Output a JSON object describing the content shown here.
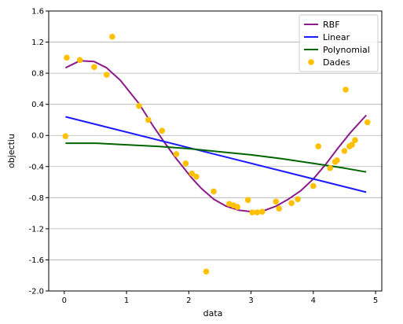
{
  "chart_data": {
    "type": "line",
    "title": "",
    "xlabel": "data",
    "ylabel": "objectiu",
    "xlim": [
      -0.25,
      5.1
    ],
    "ylim": [
      -2.0,
      1.6
    ],
    "xticks": [
      0,
      1,
      2,
      3,
      4,
      5
    ],
    "xtick_labels": [
      "0",
      "1",
      "2",
      "3",
      "4",
      "5"
    ],
    "yticks": [
      -2.0,
      -1.6,
      -1.2,
      -0.8,
      -0.4,
      0.0,
      0.4,
      0.8,
      1.2,
      1.6
    ],
    "ytick_labels": [
      "-2.0",
      "-1.6",
      "-1.2",
      "-0.8",
      "-0.4",
      "0.0",
      "0.4",
      "0.8",
      "1.2",
      "1.6"
    ],
    "grid": "horizontal",
    "legend_position": "top-right",
    "series": [
      {
        "name": "RBF",
        "kind": "line",
        "color": "#8b1a8b",
        "x": [
          0.02,
          0.25,
          0.48,
          0.68,
          0.9,
          1.2,
          1.42,
          1.6,
          1.8,
          2.05,
          2.2,
          2.4,
          2.6,
          2.8,
          3.0,
          3.2,
          3.4,
          3.6,
          3.8,
          4.0,
          4.2,
          4.4,
          4.6,
          4.85
        ],
        "y": [
          0.87,
          0.96,
          0.95,
          0.87,
          0.71,
          0.41,
          0.13,
          -0.08,
          -0.3,
          -0.55,
          -0.68,
          -0.82,
          -0.91,
          -0.96,
          -0.98,
          -0.97,
          -0.91,
          -0.82,
          -0.71,
          -0.56,
          -0.37,
          -0.16,
          0.04,
          0.26
        ]
      },
      {
        "name": "Linear",
        "kind": "line",
        "color": "#1a1aff",
        "x": [
          0.02,
          4.85
        ],
        "y": [
          0.24,
          -0.73
        ]
      },
      {
        "name": "Polynomial",
        "kind": "line",
        "color": "#006400",
        "x": [
          0.02,
          0.5,
          1.0,
          1.5,
          2.0,
          2.5,
          3.0,
          3.5,
          4.0,
          4.5,
          4.85
        ],
        "y": [
          -0.1,
          -0.1,
          -0.12,
          -0.14,
          -0.17,
          -0.21,
          -0.25,
          -0.3,
          -0.36,
          -0.42,
          -0.47
        ]
      },
      {
        "name": "Dades",
        "kind": "scatter",
        "color": "#ffc000",
        "x": [
          0.02,
          0.04,
          0.25,
          0.48,
          0.68,
          0.77,
          1.2,
          1.35,
          1.57,
          1.8,
          1.95,
          2.05,
          2.12,
          2.28,
          2.4,
          2.65,
          2.72,
          2.78,
          2.95,
          3.02,
          3.1,
          3.18,
          3.4,
          3.45,
          3.65,
          3.75,
          4.0,
          4.08,
          4.27,
          4.35,
          4.38,
          4.5,
          4.52,
          4.58,
          4.62,
          4.67,
          4.87
        ],
        "y": [
          -0.01,
          1.0,
          0.97,
          0.88,
          0.78,
          1.27,
          0.38,
          0.2,
          0.06,
          -0.24,
          -0.36,
          -0.49,
          -0.53,
          -1.75,
          -0.72,
          -0.88,
          -0.9,
          -0.92,
          -0.83,
          -0.99,
          -0.99,
          -0.98,
          -0.85,
          -0.94,
          -0.87,
          -0.82,
          -0.65,
          -0.14,
          -0.42,
          -0.34,
          -0.32,
          -0.2,
          0.59,
          -0.14,
          -0.12,
          -0.06,
          0.17
        ]
      }
    ]
  }
}
